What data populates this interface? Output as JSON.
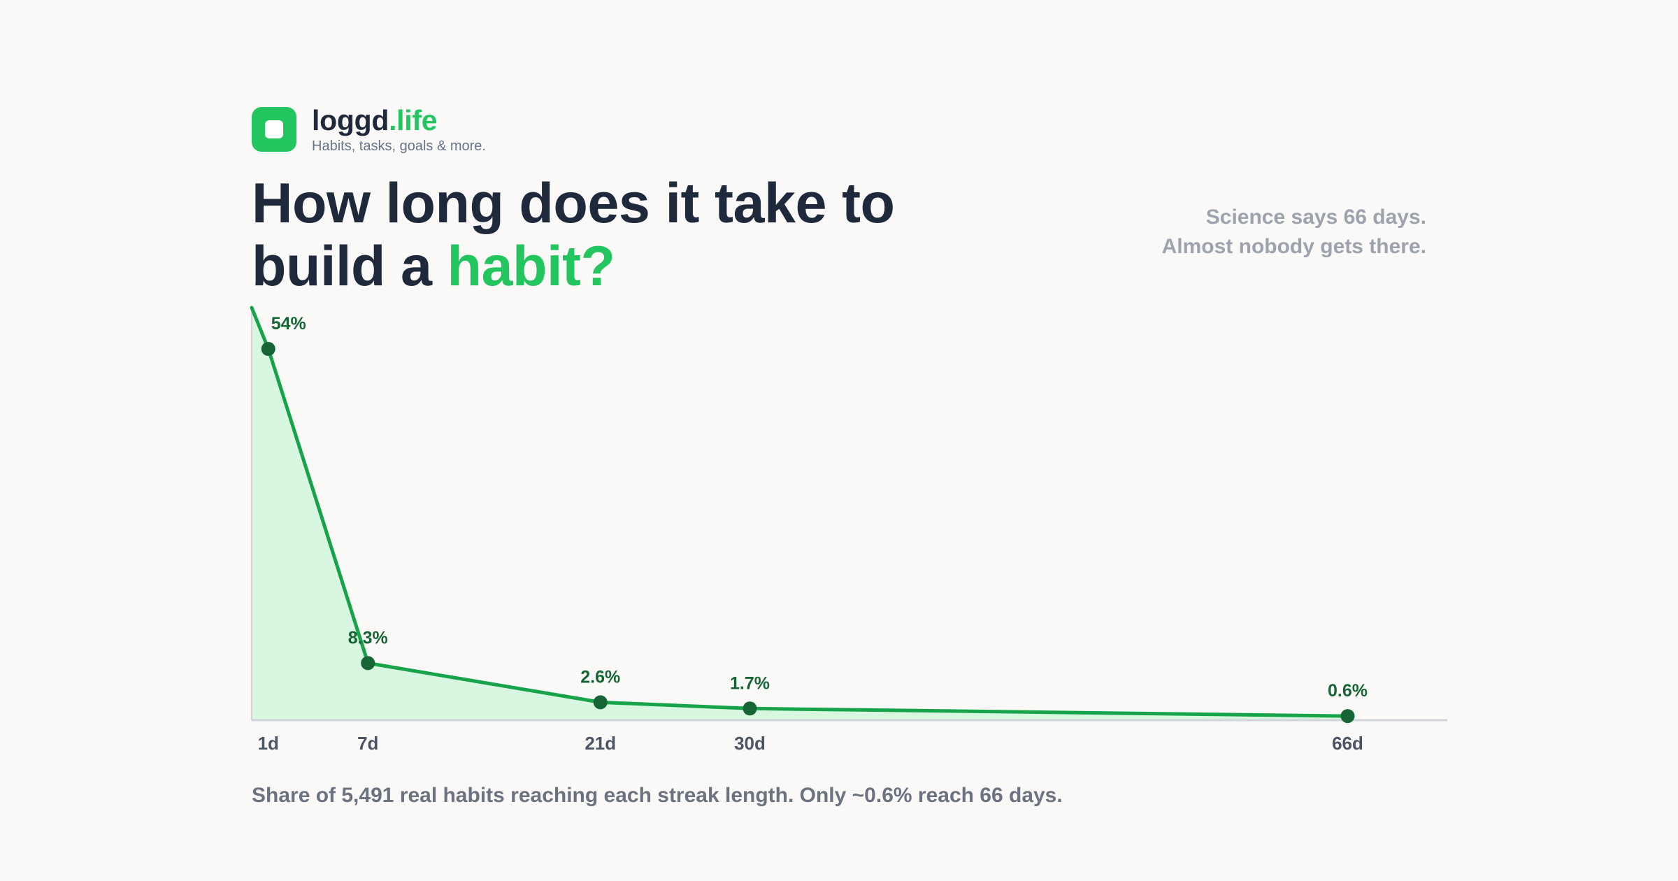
{
  "brand": {
    "name": "loggd",
    "tld": ".life",
    "tagline": "Habits, tasks, goals & more."
  },
  "headline": {
    "line1": "How long does it take to",
    "line2_prefix": "build a ",
    "line2_accent": "habit?"
  },
  "aside": {
    "line1": "Science says 66 days.",
    "line2": "Almost nobody gets there."
  },
  "caption": "Share of 5,491 real habits reaching each streak length. Only ~0.6% reach 66 days.",
  "colors": {
    "accent": "#22c55e",
    "line": "#16a34a",
    "marker": "#166534",
    "fill": "#d8f7e0",
    "text_dark": "#1e293b",
    "text_muted": "#9ca3af"
  },
  "chart_data": {
    "type": "area",
    "x": [
      1,
      7,
      21,
      30,
      66
    ],
    "tick_labels": [
      "1d",
      "7d",
      "21d",
      "30d",
      "66d"
    ],
    "values": [
      54,
      8.3,
      2.6,
      1.7,
      0.6
    ],
    "value_labels": [
      "54%",
      "8.3%",
      "2.6%",
      "1.7%",
      "0.6%"
    ],
    "line_start": {
      "x": 0,
      "y": 60
    },
    "xlim": [
      0,
      72
    ],
    "ylim": [
      0,
      60
    ],
    "title": "",
    "xlabel": "",
    "ylabel": "",
    "grid": false,
    "legend": "none"
  }
}
